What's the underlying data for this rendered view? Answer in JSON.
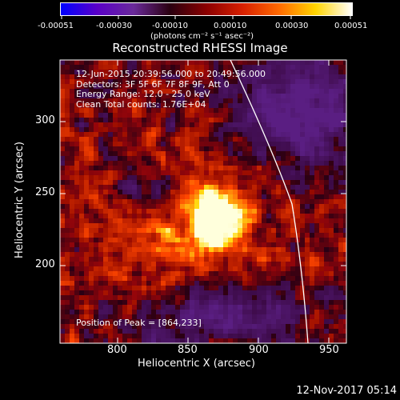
{
  "colorbar": {
    "ticks": [
      "-0.00051",
      "-0.00030",
      "-0.00010",
      "0.00010",
      "0.00030",
      "0.00051"
    ],
    "units": "(photons cm⁻² s⁻¹ asec⁻²)",
    "gradient_stops": [
      "#0000ff",
      "#5a00c8",
      "#6a2a9a",
      "#2a0010",
      "#8b0000",
      "#d82000",
      "#ff6a00",
      "#ffd400",
      "#ffffff"
    ]
  },
  "title": "Reconstructed RHESSI Image",
  "overlay": {
    "line1": "12-Jun-2015 20:39:56.000 to 20:49:56.000",
    "line2": "Detectors: 3F 5F 6F 7F 8F 9F, Att 0",
    "line3": "Energy Range: 12.0 - 25.0 keV",
    "line4": "Clean     Total counts: 1.76E+04",
    "peak": "Position of Peak = [864,233]"
  },
  "axes": {
    "xlabel": "Heliocentric X (arcsec)",
    "ylabel": "Heliocentric Y (arcsec)",
    "xticks": [
      "800",
      "850",
      "900",
      "950"
    ],
    "yticks": [
      "300",
      "250",
      "200"
    ]
  },
  "footer": {
    "timestamp": "12-Nov-2017 05:14"
  },
  "colors": {
    "limb": "#ffffff",
    "peak": "#ffffe0",
    "background": "#000000"
  }
}
